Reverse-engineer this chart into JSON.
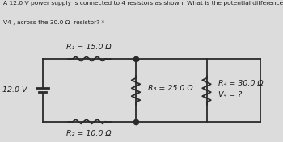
{
  "title_line1": "A 12.0 V power supply is connected to 4 resistors as shown. What is the potential difference,",
  "title_line2": "V4 , across the 30.0 Ω  resistor? *",
  "bg_color": "#dcdcdc",
  "circuit_bg": "#f0f0f0",
  "voltage": "12.0 V",
  "R1_label": "R₁ = 15.0 Ω",
  "R2_label": "R₂ = 10.0 Ω",
  "R3_label": "R₃ = 25.0 Ω",
  "R4_label": "R₄ = 30.0 Ω",
  "V4_label": "V₄ = ?",
  "wire_color": "#2a2a2a",
  "text_color": "#1a1a1a"
}
